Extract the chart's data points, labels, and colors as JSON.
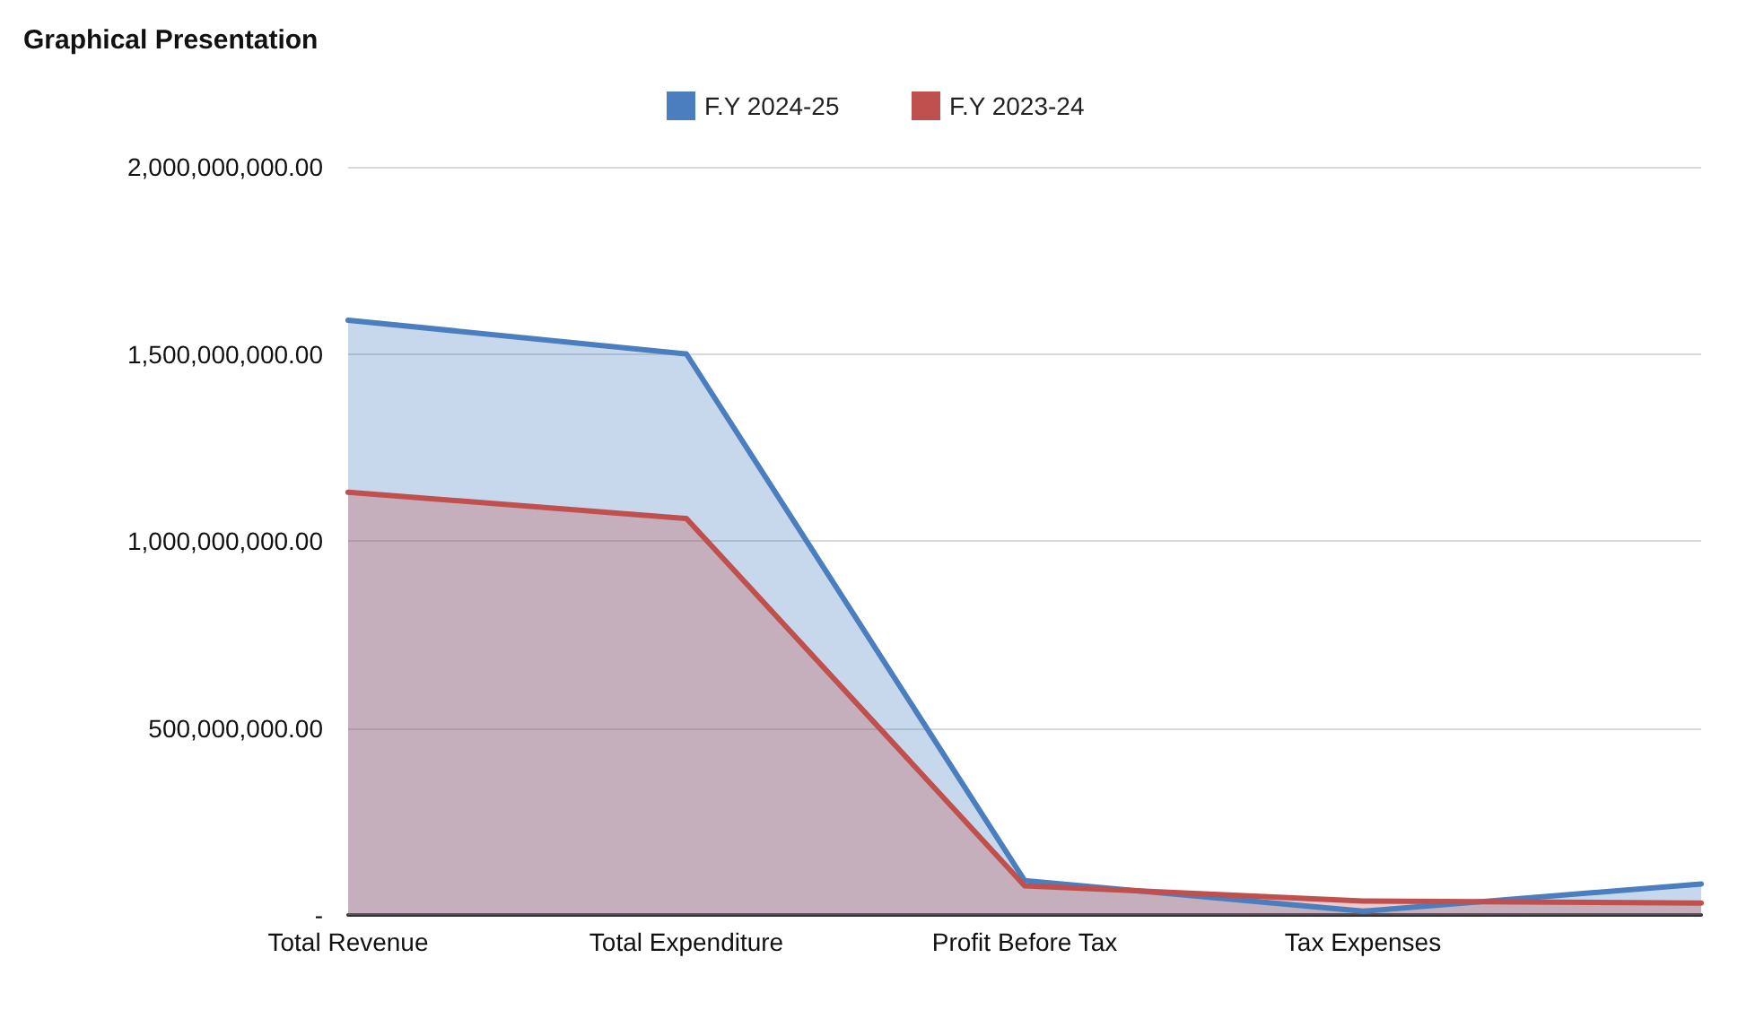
{
  "chart_data": {
    "type": "area",
    "title": "Graphical Presentation",
    "categories": [
      "Total Revenue",
      "Total Expenditure",
      "Profit Before Tax",
      "Tax Expenses",
      null
    ],
    "series": [
      {
        "name": "F.Y 2024-25",
        "color": "#4a7ebf",
        "values": [
          1590000000,
          1500000000,
          92000000,
          10000000,
          83000000
        ]
      },
      {
        "name": "F.Y 2023-24",
        "color": "#c0504d",
        "values": [
          1130000000,
          1060000000,
          78000000,
          37000000,
          32000000
        ]
      }
    ],
    "ylim": [
      0,
      2000000000
    ],
    "yticks": [
      {
        "value": 0,
        "label": "-"
      },
      {
        "value": 500000000,
        "label": "500,000,000.00"
      },
      {
        "value": 1000000000,
        "label": "1,000,000,000.00"
      },
      {
        "value": 1500000000,
        "label": "1,500,000,000.00"
      },
      {
        "value": 2000000000,
        "label": "2,000,000,000.00"
      }
    ],
    "grid": "y",
    "legend": "top",
    "marker": "none",
    "line_style": "solid"
  }
}
